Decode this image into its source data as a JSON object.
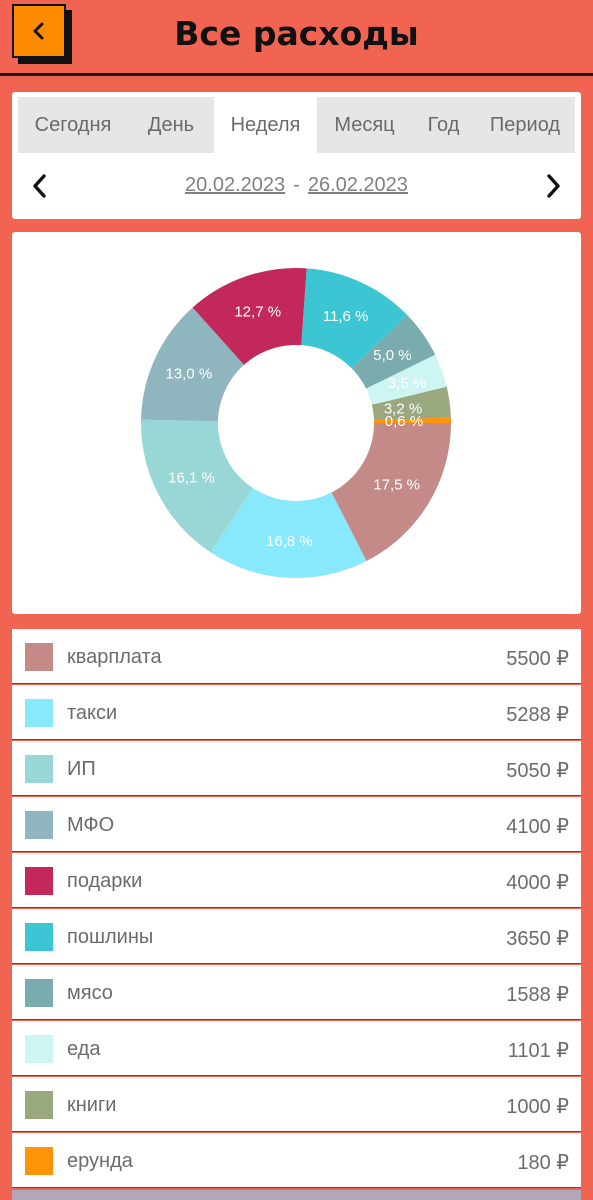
{
  "header": {
    "title": "Все расходы",
    "back_icon": "chevron-left-icon"
  },
  "period": {
    "tabs": [
      {
        "label": "Сегодня",
        "active": false
      },
      {
        "label": "День",
        "active": false
      },
      {
        "label": "Неделя",
        "active": true
      },
      {
        "label": "Месяц",
        "active": false
      },
      {
        "label": "Год",
        "active": false
      },
      {
        "label": "Период",
        "active": false
      }
    ],
    "date_from": "20.02.2023",
    "date_separator": "-",
    "date_to": "26.02.2023"
  },
  "chart_data": {
    "type": "pie",
    "slices": [
      {
        "label": "кварплата",
        "value": 5500,
        "percent_label": "17,5 %",
        "color": "#c38a87"
      },
      {
        "label": "такси",
        "value": 5288,
        "percent_label": "16,8 %",
        "color": "#88e8fc"
      },
      {
        "label": "ИП",
        "value": 5050,
        "percent_label": "16,1 %",
        "color": "#99d6d6"
      },
      {
        "label": "МФО",
        "value": 4100,
        "percent_label": "13,0 %",
        "color": "#8fb6be"
      },
      {
        "label": "подарки",
        "value": 4000,
        "percent_label": "12,7 %",
        "color": "#c2285a"
      },
      {
        "label": "пошлины",
        "value": 3650,
        "percent_label": "11,6 %",
        "color": "#3cc6d4"
      },
      {
        "label": "мясо",
        "value": 1588,
        "percent_label": "5,0 %",
        "color": "#79abaf"
      },
      {
        "label": "еда",
        "value": 1101,
        "percent_label": "3,5 %",
        "color": "#cdf6f2"
      },
      {
        "label": "книги",
        "value": 1000,
        "percent_label": "3,2 %",
        "color": "#9aa880"
      },
      {
        "label": "ерунда",
        "value": 180,
        "percent_label": "0,6 %",
        "color": "#ff9408"
      }
    ]
  },
  "expenses": [
    {
      "name": "кварплата",
      "amount": "5500 ₽",
      "color": "#c38a87"
    },
    {
      "name": "такси",
      "amount": "5288 ₽",
      "color": "#88e8fc"
    },
    {
      "name": "ИП",
      "amount": "5050 ₽",
      "color": "#99d6d6"
    },
    {
      "name": "МФО",
      "amount": "4100 ₽",
      "color": "#8fb6be"
    },
    {
      "name": "подарки",
      "amount": "4000 ₽",
      "color": "#c2285a"
    },
    {
      "name": "пошлины",
      "amount": "3650 ₽",
      "color": "#3cc6d4"
    },
    {
      "name": "мясо",
      "amount": "1588 ₽",
      "color": "#79abaf"
    },
    {
      "name": "еда",
      "amount": "1101 ₽",
      "color": "#cdf6f2"
    },
    {
      "name": "книги",
      "amount": "1000 ₽",
      "color": "#9aa880"
    },
    {
      "name": "ерунда",
      "amount": "180 ₽",
      "color": "#ff9408"
    }
  ]
}
